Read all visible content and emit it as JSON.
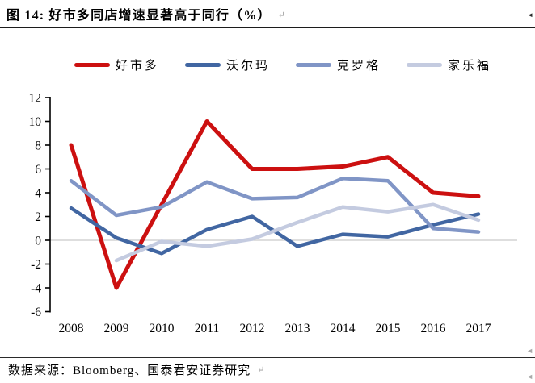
{
  "header": {
    "title": "图 14:  好市多同店增速显著高于同行（%）",
    "paragraph_mark": "↵",
    "anchor_mark": "◄"
  },
  "footer": {
    "source": "数据来源：Bloomberg、国泰君安证券研究",
    "paragraph_mark": "↵"
  },
  "colors": {
    "axis": "#000000",
    "zero_gridline": "#c9c9c9",
    "tick_text": "#000000"
  },
  "chart_data": {
    "type": "line",
    "title": "好市多同店增速显著高于同行（%）",
    "x": [
      2008,
      2009,
      2010,
      2011,
      2012,
      2013,
      2014,
      2015,
      2016,
      2017
    ],
    "xlabel": "",
    "ylabel": "",
    "ylim": [
      -6,
      12
    ],
    "yticks": [
      12,
      10,
      8,
      6,
      4,
      2,
      0,
      -2,
      -4,
      -6
    ],
    "grid": "zero-line-only",
    "legend_position": "top",
    "series": [
      {
        "key": "costco",
        "name": "好市多",
        "color": "#cc1010",
        "width": 5,
        "values": [
          8,
          -4,
          3,
          10,
          6,
          6,
          6.2,
          7,
          4,
          3.7
        ]
      },
      {
        "key": "walmart",
        "name": "沃尔玛",
        "color": "#4166a2",
        "width": 4.5,
        "values": [
          2.7,
          0.2,
          -1.1,
          0.9,
          2.0,
          -0.5,
          0.5,
          0.3,
          1.3,
          2.2
        ]
      },
      {
        "key": "kroger",
        "name": "克罗格",
        "color": "#8095c6",
        "width": 4.5,
        "values": [
          5.0,
          2.1,
          2.8,
          4.9,
          3.5,
          3.6,
          5.2,
          5.0,
          1.0,
          0.7
        ]
      },
      {
        "key": "carrefour",
        "name": "家乐福",
        "color": "#c4cbe0",
        "width": 4.5,
        "values": [
          null,
          -1.7,
          -0.1,
          -0.5,
          0.1,
          1.5,
          2.8,
          2.4,
          3.0,
          1.7
        ]
      }
    ]
  }
}
